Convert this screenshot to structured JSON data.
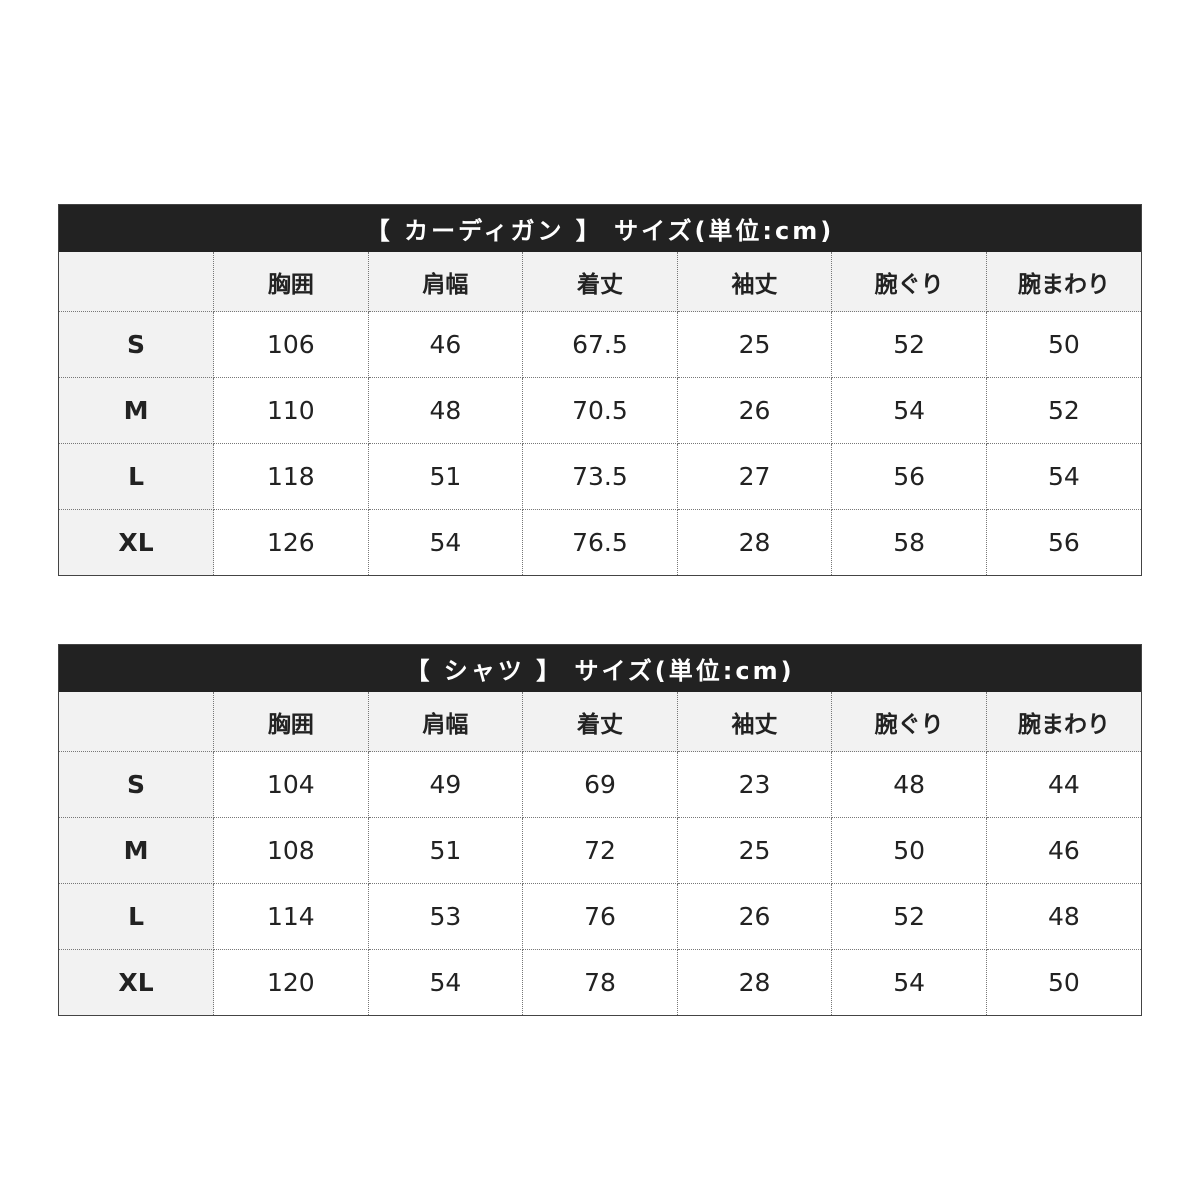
{
  "tables": [
    {
      "title": "【 カーディガン 】 サイズ(単位:cm)",
      "columns": [
        "",
        "胸囲",
        "肩幅",
        "着丈",
        "袖丈",
        "腕ぐり",
        "腕まわり"
      ],
      "rows": [
        [
          "S",
          "106",
          "46",
          "67.5",
          "25",
          "52",
          "50"
        ],
        [
          "M",
          "110",
          "48",
          "70.5",
          "26",
          "54",
          "52"
        ],
        [
          "L",
          "118",
          "51",
          "73.5",
          "27",
          "56",
          "54"
        ],
        [
          "XL",
          "126",
          "54",
          "76.5",
          "28",
          "58",
          "56"
        ]
      ]
    },
    {
      "title": "【 シャツ 】 サイズ(単位:cm)",
      "columns": [
        "",
        "胸囲",
        "肩幅",
        "着丈",
        "袖丈",
        "腕ぐり",
        "腕まわり"
      ],
      "rows": [
        [
          "S",
          "104",
          "49",
          "69",
          "23",
          "48",
          "44"
        ],
        [
          "M",
          "108",
          "51",
          "72",
          "25",
          "50",
          "46"
        ],
        [
          "L",
          "114",
          "53",
          "76",
          "26",
          "52",
          "48"
        ],
        [
          "XL",
          "120",
          "54",
          "78",
          "28",
          "54",
          "50"
        ]
      ]
    }
  ]
}
